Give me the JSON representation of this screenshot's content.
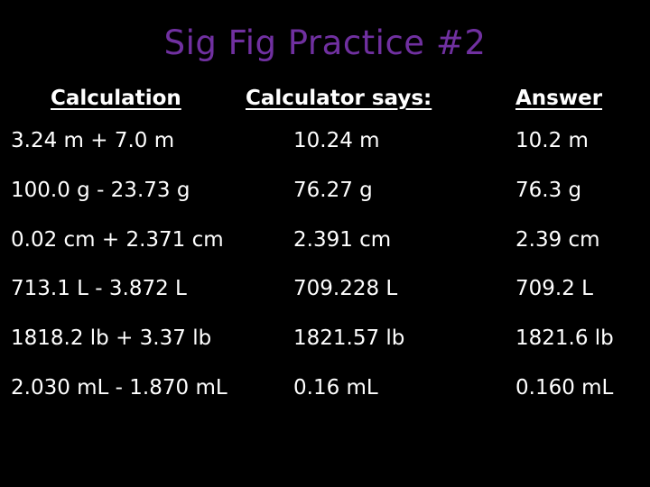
{
  "title": "Sig Fig Practice #2",
  "headers": {
    "calculation": "Calculation",
    "calculator_says": "Calculator says:",
    "answer": "Answer"
  },
  "rows": [
    {
      "calculation": "3.24 m + 7.0 m",
      "calculator_says": "10.24 m",
      "answer": "10.2 m"
    },
    {
      "calculation": "100.0 g - 23.73 g",
      "calculator_says": "76.27 g",
      "answer": "76.3 g"
    },
    {
      "calculation": "0.02 cm + 2.371 cm",
      "calculator_says": "2.391 cm",
      "answer": "2.39 cm"
    },
    {
      "calculation": "713.1 L - 3.872 L",
      "calculator_says": "709.228 L",
      "answer": "709.2 L"
    },
    {
      "calculation": "1818.2 lb + 3.37 lb",
      "calculator_says": "1821.57 lb",
      "answer": "1821.6 lb"
    },
    {
      "calculation": "2.030 mL - 1.870 mL",
      "calculator_says": "0.16 mL",
      "answer": "0.160 mL"
    }
  ],
  "colors": {
    "background": "#000000",
    "title": "#7030a0",
    "text": "#ffffff"
  }
}
